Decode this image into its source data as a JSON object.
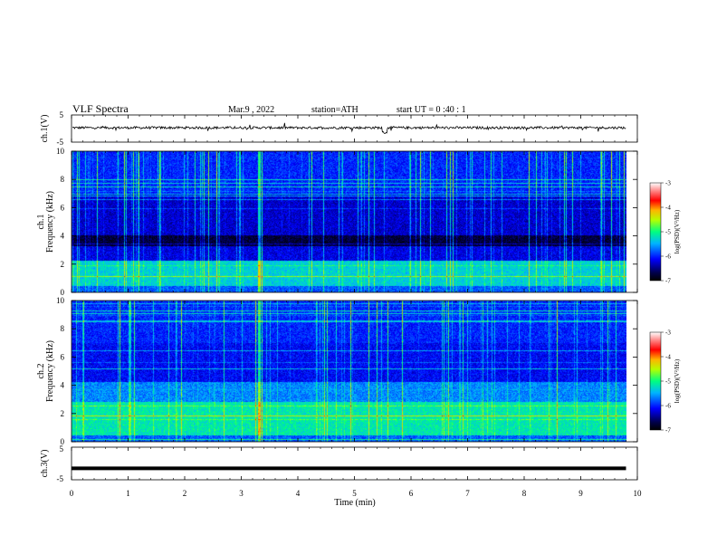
{
  "header": {
    "title": "VLF  Spectra",
    "date": "Mar.9  , 2022",
    "station": "station=ATH",
    "start_ut": "start  UT  =    0  :40 : 1"
  },
  "chart_data": [
    {
      "type": "line",
      "name": "ch1-waveform",
      "ylabel": "ch.1(V)",
      "ylim": [
        -5,
        5
      ],
      "yticks": [
        "5",
        "-5"
      ],
      "baseline": 0.3,
      "note_values": "noisy waveform around ~0.3 V with spikes to ~+1.5 and ~-1.5 V"
    },
    {
      "type": "heatmap",
      "name": "ch1-spectrogram",
      "ylabel": "ch.1\nFrequency  (kHz)",
      "ylim": [
        0,
        10
      ],
      "yticks": [
        "0",
        "2",
        "4",
        "6",
        "8",
        "10"
      ],
      "colorbar": {
        "label": "log(PSD)(V²/Hz)",
        "range": [
          -7,
          -3
        ],
        "ticks": [
          "-3",
          "-4",
          "-5",
          "-6",
          "-7"
        ]
      }
    },
    {
      "type": "heatmap",
      "name": "ch2-spectrogram",
      "ylabel": "ch.2\nFrequency  (kHz)",
      "ylim": [
        0,
        10
      ],
      "yticks": [
        "0",
        "2",
        "4",
        "6",
        "8",
        "10"
      ],
      "colorbar": {
        "label": "log(PSD)(V²/Hz)",
        "range": [
          -7,
          -3
        ],
        "ticks": [
          "-3",
          "-4",
          "-5",
          "-6",
          "-7"
        ]
      }
    },
    {
      "type": "line",
      "name": "ch3-waveform",
      "ylabel": "ch.3(V)",
      "ylim": [
        -5,
        5
      ],
      "yticks": [
        "5",
        "-5"
      ],
      "baseline": -1.5,
      "note_values": "flat thick trace at about -1.5 V"
    }
  ],
  "x_axis": {
    "label": "Time  (min)",
    "range": [
      0,
      10
    ],
    "data_end": 9.8,
    "ticks": [
      "0",
      "1",
      "2",
      "3",
      "4",
      "5",
      "6",
      "7",
      "8",
      "9",
      "10"
    ]
  }
}
